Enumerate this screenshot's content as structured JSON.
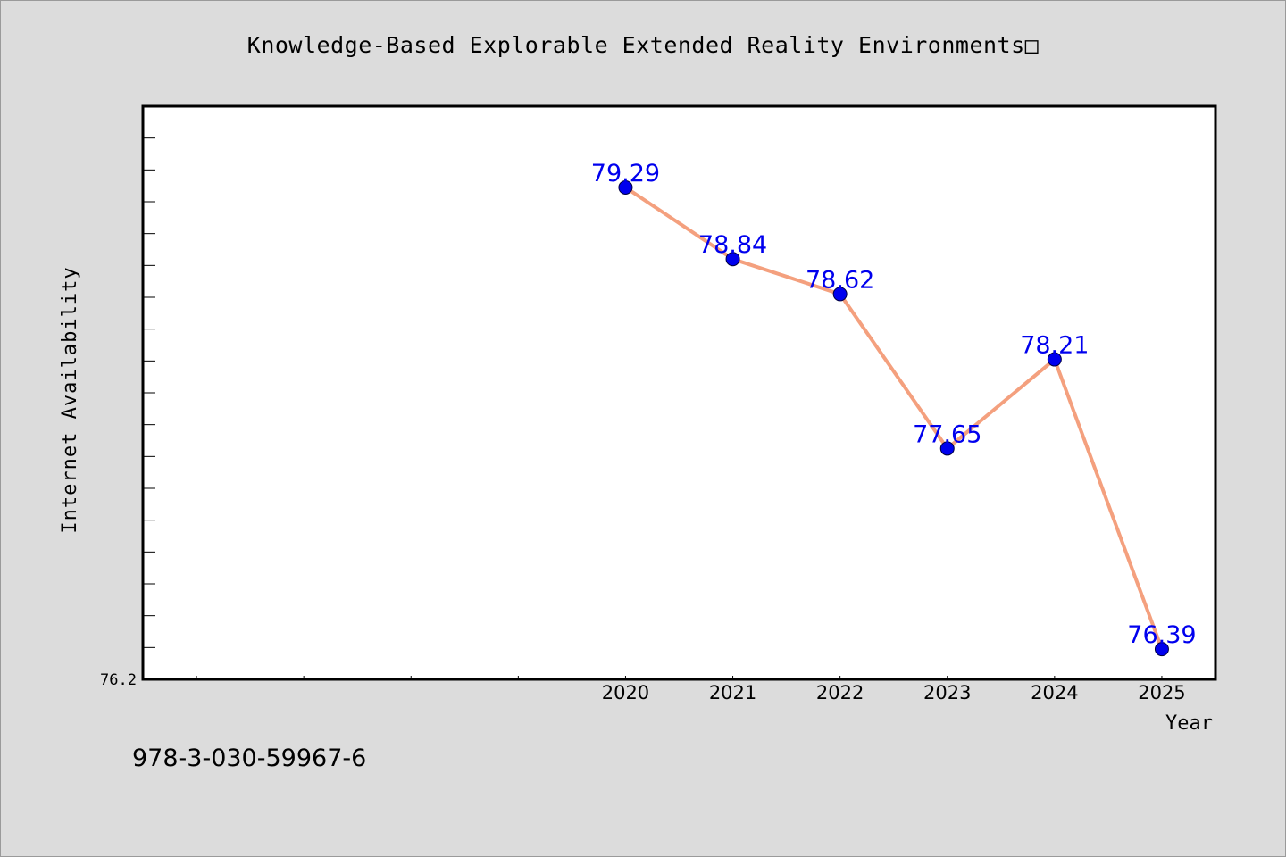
{
  "title": "Knowledge-Based Explorable Extended Reality Environments□",
  "footer_text": "978-3-030-59967-6",
  "chart_data": {
    "type": "line",
    "title": "Knowledge-Based Explorable Extended Reality Environments□",
    "xlabel": "Year",
    "ylabel": "Internet Availability",
    "x": [
      2020,
      2021,
      2022,
      2023,
      2024,
      2025
    ],
    "x_tick_labels": [
      "2020",
      "2021",
      "2022",
      "2023",
      "2024",
      "2025"
    ],
    "xlim": [
      2015.5,
      2025.5
    ],
    "ylim": [
      76.2,
      79.8
    ],
    "y_tick_labels": [
      "76.2"
    ],
    "series": [
      {
        "values": [
          79.29,
          78.84,
          78.62,
          77.65,
          78.21,
          76.39
        ],
        "data_labels": [
          "79.29",
          "78.84",
          "78.62",
          "77.65",
          "78.21",
          "76.39"
        ]
      }
    ],
    "colors": {
      "line": "#f4a07e",
      "marker": "#0000ee",
      "data_label": "#0000ee",
      "plot_background": "#ffffff",
      "page_background": "#dcdcdc"
    },
    "grid": false,
    "legend": "none"
  }
}
